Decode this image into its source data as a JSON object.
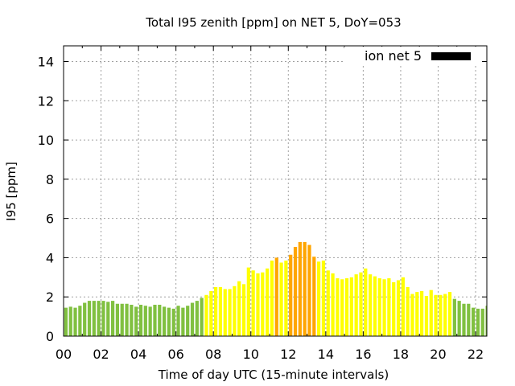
{
  "chart_data": {
    "type": "bar",
    "title": "Total I95 zenith [ppm] on NET 5, DoY=053",
    "xlabel": "Time of day UTC (15-minute intervals)",
    "ylabel": "I95 [ppm]",
    "xlim": [
      0,
      22.6
    ],
    "ylim": [
      0,
      14.8
    ],
    "x_ticks": [
      "00",
      "02",
      "04",
      "06",
      "08",
      "10",
      "12",
      "14",
      "16",
      "18",
      "20",
      "22"
    ],
    "y_ticks": [
      "0",
      "2",
      "4",
      "6",
      "8",
      "10",
      "12",
      "14"
    ],
    "grid": true,
    "legend": {
      "label": "ion net 5",
      "placement": "top-right",
      "color": "#000000"
    },
    "interval_hours": 0.25,
    "color_thresholds": {
      "low": 2,
      "high": 4
    },
    "colors": {
      "low": "#80c040",
      "mid": "#ffff00",
      "high": "#ffa500"
    },
    "values": [
      1.45,
      1.5,
      1.45,
      1.55,
      1.7,
      1.8,
      1.8,
      1.8,
      1.8,
      1.75,
      1.8,
      1.65,
      1.65,
      1.65,
      1.6,
      1.5,
      1.6,
      1.55,
      1.5,
      1.6,
      1.6,
      1.5,
      1.45,
      1.4,
      1.55,
      1.45,
      1.55,
      1.7,
      1.8,
      1.95,
      2.1,
      2.3,
      2.5,
      2.5,
      2.4,
      2.4,
      2.55,
      2.8,
      2.65,
      3.5,
      3.35,
      3.2,
      3.25,
      3.45,
      3.85,
      4.0,
      3.75,
      3.85,
      4.15,
      4.55,
      4.8,
      4.8,
      4.65,
      4.05,
      3.8,
      3.85,
      3.35,
      3.2,
      2.95,
      2.9,
      2.95,
      3.0,
      3.15,
      3.25,
      3.45,
      3.15,
      3.05,
      2.95,
      2.9,
      2.95,
      2.75,
      2.85,
      3.0,
      2.5,
      2.15,
      2.25,
      2.3,
      2.05,
      2.35,
      2.1,
      2.1,
      2.15,
      2.25,
      1.9,
      1.8,
      1.65,
      1.65,
      1.45,
      1.4,
      1.4,
      1.55
    ]
  }
}
